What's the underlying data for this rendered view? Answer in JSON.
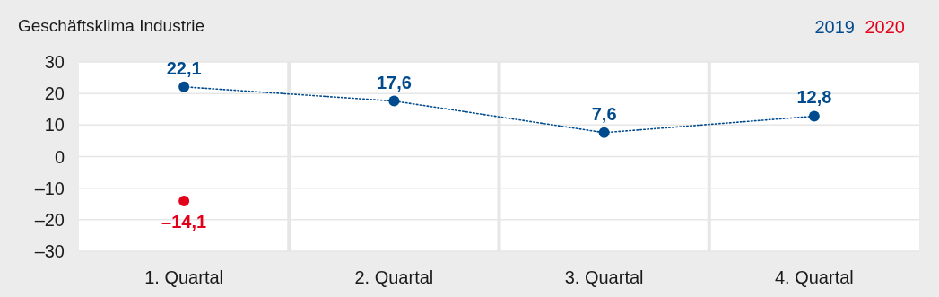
{
  "chart_data": {
    "type": "line",
    "title": "Geschäftsklima Industrie",
    "categories": [
      "1. Quartal",
      "2. Quartal",
      "3. Quartal",
      "4. Quartal"
    ],
    "series": [
      {
        "name": "2019",
        "color": "#004b8d",
        "values": [
          22.1,
          17.6,
          7.6,
          12.8
        ],
        "value_labels": [
          "22,1",
          "17,6",
          "7,6",
          "12,8"
        ],
        "line_style": "dotted",
        "marker": "circle"
      },
      {
        "name": "2020",
        "type": "scatter",
        "color": "#e2001a",
        "values": [
          -14.1,
          null,
          null,
          null
        ],
        "value_labels": [
          "–14,1",
          null,
          null,
          null
        ],
        "marker": "circle"
      }
    ],
    "ylim": [
      -30,
      30
    ],
    "yticks": [
      {
        "value": -30,
        "label": "–30"
      },
      {
        "value": -20,
        "label": "–20"
      },
      {
        "value": -10,
        "label": "–10"
      },
      0,
      10,
      20,
      30
    ],
    "grid": true,
    "legend": "top right"
  }
}
